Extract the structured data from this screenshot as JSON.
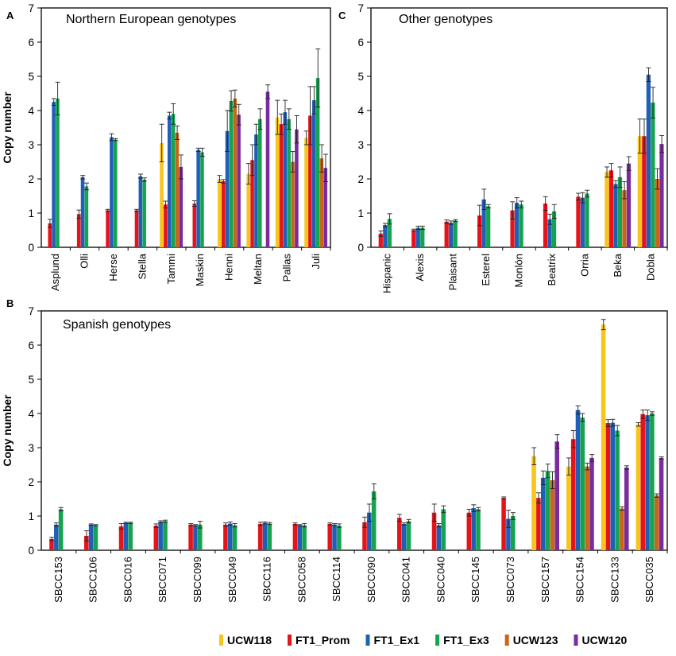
{
  "legend": [
    {
      "name": "UCW118",
      "color": "#f7c51c"
    },
    {
      "name": "FT1_Prom",
      "color": "#e5141b"
    },
    {
      "name": "FT1_Ex1",
      "color": "#1f5fb8"
    },
    {
      "name": "FT1_Ex3",
      "color": "#16a350"
    },
    {
      "name": "UCW123",
      "color": "#c96518"
    },
    {
      "name": "UCW120",
      "color": "#7a2c9e"
    }
  ],
  "chart_data": [
    {
      "panel": "A",
      "type": "bar",
      "title": "Northern European genotypes",
      "ylabel": "Copy number",
      "ylim": [
        0,
        7
      ],
      "yticks": [
        "0",
        "1",
        "2",
        "3",
        "4",
        "5",
        "6",
        "7"
      ],
      "categories": [
        "Asplund",
        "Olli",
        "Herse",
        "Stella",
        "Tammi",
        "Maskin",
        "Henni",
        "Meltan",
        "Pallas",
        "Juli"
      ],
      "series": [
        {
          "name": "UCW118",
          "values": [
            null,
            null,
            null,
            null,
            3.05,
            null,
            2.0,
            2.15,
            3.8,
            3.2
          ],
          "errors": [
            0,
            0,
            0,
            0,
            0.55,
            0,
            0.1,
            0.3,
            0.5,
            0.2
          ]
        },
        {
          "name": "FT1_Prom",
          "values": [
            0.7,
            0.97,
            1.08,
            1.08,
            1.25,
            1.28,
            1.93,
            2.55,
            3.6,
            3.85
          ],
          "errors": [
            0.12,
            0.12,
            0.03,
            0.03,
            0.1,
            0.08,
            0.05,
            0.45,
            0.3,
            0.85
          ]
        },
        {
          "name": "FT1_Ex1",
          "values": [
            4.25,
            2.05,
            3.22,
            2.08,
            3.85,
            2.85,
            3.4,
            3.3,
            3.95,
            4.3
          ],
          "errors": [
            0.1,
            0.05,
            0.1,
            0.06,
            0.1,
            0.05,
            0.6,
            0.3,
            0.35,
            0.4
          ]
        },
        {
          "name": "FT1_Ex3",
          "values": [
            4.35,
            1.78,
            3.15,
            1.98,
            3.9,
            2.78,
            4.28,
            3.75,
            3.75,
            4.95
          ],
          "errors": [
            0.48,
            0.1,
            0.03,
            0.05,
            0.3,
            0.12,
            0.3,
            0.3,
            0.3,
            0.85
          ]
        },
        {
          "name": "UCW123",
          "values": [
            null,
            null,
            null,
            null,
            3.35,
            null,
            4.35,
            null,
            2.5,
            2.6
          ],
          "errors": [
            0,
            0,
            0,
            0,
            0.2,
            0,
            0.25,
            0,
            0.3,
            0.4
          ]
        },
        {
          "name": "UCW120",
          "values": [
            null,
            null,
            null,
            null,
            2.35,
            null,
            3.88,
            4.55,
            3.45,
            2.32
          ],
          "errors": [
            0,
            0,
            0,
            0,
            0.35,
            0,
            0.3,
            0.2,
            0.4,
            0.4
          ]
        }
      ]
    },
    {
      "panel": "C",
      "type": "bar",
      "title": "Other genotypes",
      "ylabel": "",
      "ylim": [
        0,
        7
      ],
      "yticks": [
        "0",
        "1",
        "2",
        "3",
        "4",
        "5",
        "6",
        "7"
      ],
      "categories": [
        "Hispanic",
        "Alexis",
        "Plaisant",
        "Esterel",
        "Monlón",
        "Beatrix",
        "Orria",
        "Beka",
        "Dobla"
      ],
      "series": [
        {
          "name": "UCW118",
          "values": [
            null,
            null,
            null,
            null,
            null,
            null,
            null,
            2.2,
            3.25
          ],
          "errors": [
            0,
            0,
            0,
            0,
            0,
            0,
            0,
            0.15,
            0.5
          ]
        },
        {
          "name": "FT1_Prom",
          "values": [
            0.4,
            0.5,
            0.75,
            0.93,
            1.08,
            1.28,
            1.48,
            2.25,
            3.25
          ],
          "errors": [
            0.08,
            0.03,
            0.05,
            0.3,
            0.25,
            0.2,
            0.1,
            0.2,
            0.5
          ]
        },
        {
          "name": "FT1_Ex1",
          "values": [
            0.65,
            0.57,
            0.72,
            1.4,
            1.3,
            0.82,
            1.45,
            1.85,
            5.05
          ],
          "errors": [
            0.05,
            0.05,
            0.05,
            0.3,
            0.15,
            0.15,
            0.15,
            0.1,
            0.2
          ]
        },
        {
          "name": "FT1_Ex3",
          "values": [
            0.83,
            0.57,
            0.78,
            1.2,
            1.25,
            1.05,
            1.57,
            2.05,
            4.23
          ],
          "errors": [
            0.15,
            0.05,
            0.03,
            0.05,
            0.1,
            0.2,
            0.1,
            0.3,
            0.45
          ]
        },
        {
          "name": "UCW123",
          "values": [
            null,
            null,
            null,
            null,
            null,
            null,
            null,
            1.67,
            2.0
          ],
          "errors": [
            0,
            0,
            0,
            0,
            0,
            0,
            0,
            0.25,
            0.3
          ]
        },
        {
          "name": "UCW120",
          "values": [
            null,
            null,
            null,
            null,
            null,
            null,
            null,
            2.45,
            3.02
          ],
          "errors": [
            0,
            0,
            0,
            0,
            0,
            0,
            0,
            0.2,
            0.25
          ]
        }
      ]
    },
    {
      "panel": "B",
      "type": "bar",
      "title": "Spanish genotypes",
      "ylabel": "Copy number",
      "ylim": [
        0,
        7
      ],
      "yticks": [
        "0",
        "1",
        "2",
        "3",
        "4",
        "5",
        "6",
        "7"
      ],
      "categories": [
        "SBCC153",
        "SBCC106",
        "SBCC016",
        "SBCC071",
        "SBCC099",
        "SBCC049",
        "SBCC116",
        "SBCC058",
        "SBCC114",
        "SBCC090",
        "SBCC041",
        "SBCC040",
        "SBCC145",
        "SBCC073",
        "SBCC157",
        "SBCC154",
        "SBCC133",
        "SBCC035"
      ],
      "series": [
        {
          "name": "UCW118",
          "values": [
            null,
            null,
            null,
            null,
            null,
            null,
            null,
            null,
            null,
            null,
            null,
            null,
            null,
            null,
            2.75,
            2.45,
            6.6,
            3.68
          ],
          "errors": [
            0,
            0,
            0,
            0,
            0,
            0,
            0,
            0,
            0,
            0,
            0,
            0,
            0,
            0,
            0.25,
            0.25,
            0.15,
            0.05
          ]
        },
        {
          "name": "FT1_Prom",
          "values": [
            0.33,
            0.42,
            0.7,
            0.72,
            0.75,
            0.75,
            0.77,
            0.77,
            0.77,
            0.82,
            0.95,
            1.1,
            1.1,
            1.53,
            1.53,
            3.25,
            3.72,
            3.98
          ],
          "errors": [
            0.05,
            0.15,
            0.08,
            0.05,
            0.03,
            0.05,
            0.05,
            0.03,
            0.03,
            0.15,
            0.1,
            0.25,
            0.1,
            0.03,
            0.15,
            0.25,
            0.1,
            0.12
          ]
        },
        {
          "name": "FT1_Ex1",
          "values": [
            0.75,
            0.75,
            0.8,
            0.83,
            0.73,
            0.78,
            0.8,
            0.73,
            0.75,
            1.1,
            0.77,
            0.73,
            1.23,
            0.92,
            2.12,
            4.1,
            3.73,
            3.95
          ],
          "errors": [
            0.05,
            0.02,
            0.02,
            0.03,
            0.02,
            0.05,
            0.03,
            0.02,
            0.03,
            0.25,
            0.03,
            0.05,
            0.1,
            0.25,
            0.2,
            0.12,
            0.1,
            0.15
          ]
        },
        {
          "name": "FT1_Ex3",
          "values": [
            1.2,
            0.73,
            0.8,
            0.85,
            0.75,
            0.73,
            0.78,
            0.73,
            0.72,
            1.72,
            0.85,
            1.2,
            1.2,
            1.0,
            2.32,
            3.88,
            3.5,
            4.0
          ],
          "errors": [
            0.05,
            0.02,
            0.02,
            0.03,
            0.1,
            0.05,
            0.03,
            0.05,
            0.05,
            0.22,
            0.05,
            0.1,
            0.05,
            0.1,
            0.2,
            0.12,
            0.15,
            0.05
          ]
        },
        {
          "name": "UCW123",
          "values": [
            null,
            null,
            null,
            null,
            null,
            null,
            null,
            null,
            null,
            null,
            null,
            null,
            null,
            null,
            2.05,
            2.45,
            1.22,
            1.6
          ],
          "errors": [
            0,
            0,
            0,
            0,
            0,
            0,
            0,
            0,
            0,
            0,
            0,
            0,
            0,
            0,
            0.25,
            0.1,
            0.05,
            0.05
          ]
        },
        {
          "name": "UCW120",
          "values": [
            null,
            null,
            null,
            null,
            null,
            null,
            null,
            null,
            null,
            null,
            null,
            null,
            null,
            null,
            3.18,
            2.7,
            2.42,
            2.7
          ],
          "errors": [
            0,
            0,
            0,
            0,
            0,
            0,
            0,
            0,
            0,
            0,
            0,
            0,
            0,
            0,
            0.2,
            0.1,
            0.05,
            0.03
          ]
        }
      ]
    }
  ]
}
